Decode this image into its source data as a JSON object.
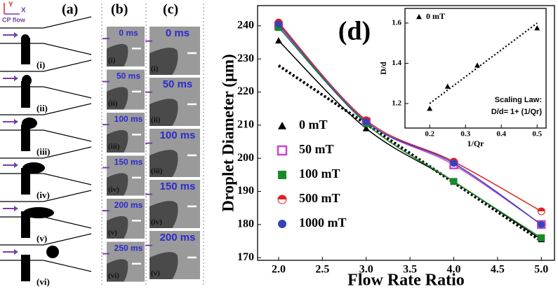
{
  "panel_a": {
    "label": "(a)",
    "axis_y": "Y",
    "axis_x": "X",
    "flow_label": "CP flow",
    "stages": [
      "(i)",
      "(ii)",
      "(iii)",
      "(iv)",
      "(v)",
      "(vi)"
    ]
  },
  "panel_b": {
    "label": "(b)",
    "frames": [
      {
        "time": "0 ms",
        "stage": "(i)"
      },
      {
        "time": "50 ms",
        "stage": "(ii)"
      },
      {
        "time": "100 ms",
        "stage": "(iii)"
      },
      {
        "time": "150 ms",
        "stage": "(iv)"
      },
      {
        "time": "200 ms",
        "stage": "(v)"
      },
      {
        "time": "250 ms",
        "stage": "(vi)"
      }
    ]
  },
  "panel_c": {
    "label": "(c)",
    "frames": [
      {
        "time": "0 ms",
        "stage": "(i)"
      },
      {
        "time": "50 ms",
        "stage": "(ii)"
      },
      {
        "time": "100 ms",
        "stage": "(iii)"
      },
      {
        "time": "150 ms",
        "stage": "(iv)"
      },
      {
        "time": "200 ms",
        "stage": "(v)"
      }
    ]
  },
  "chart_data": [
    {
      "type": "scatter",
      "title": "(d)",
      "x_label": "Flow Rate Ratio",
      "y_label": "Droplet Diameter (μm)",
      "x": [
        2,
        3,
        4,
        5
      ],
      "series": [
        {
          "name": "0 mT",
          "color": "#000000",
          "marker": "triangle",
          "values": [
            235.5,
            209,
            193,
            175.5
          ]
        },
        {
          "name": "50 mT",
          "color": "#cc44cc",
          "marker": "square-half",
          "values": [
            240,
            211,
            198,
            180
          ]
        },
        {
          "name": "100 mT",
          "color": "#1a8a2a",
          "marker": "square",
          "values": [
            239.5,
            210.5,
            193,
            176
          ]
        },
        {
          "name": "500 mT",
          "color": "#dd2222",
          "marker": "circle-half",
          "values": [
            241,
            211.5,
            199,
            184
          ]
        },
        {
          "name": "1000 mT",
          "color": "#3344bb",
          "marker": "circle",
          "values": [
            240.5,
            211,
            198.5,
            180
          ]
        }
      ],
      "fit_lines": true,
      "trend_line": {
        "x": [
          2,
          5
        ],
        "values": [
          228,
          175
        ],
        "color": "#000000"
      },
      "xlim": [
        1.76,
        5.15
      ],
      "ylim": [
        169.2,
        246.1
      ],
      "xticks": [
        {
          "value": 2,
          "label": "2.0"
        },
        2.5,
        {
          "value": 3,
          "label": "3.0"
        },
        3.5,
        {
          "value": 4,
          "label": "4.0"
        },
        4.5,
        {
          "value": 5,
          "label": "5.0"
        }
      ],
      "yticks": [
        170,
        180,
        190,
        200,
        210,
        220,
        230,
        240
      ],
      "legend": "lower left"
    },
    {
      "type": "scatter",
      "x_label": "1/Qr",
      "y_label": "D/d",
      "x": [
        0.2,
        0.25,
        0.333,
        0.5
      ],
      "series": [
        {
          "name": "0 mT",
          "color": "#000000",
          "marker": "triangle",
          "values": [
            1.175,
            1.285,
            1.39,
            1.575
          ]
        }
      ],
      "fit_lines": false,
      "trend_line": {
        "x": [
          0.2,
          0.5
        ],
        "values": [
          1.2,
          1.6
        ],
        "color": "#000000"
      },
      "annotations": [
        "Scaling Law:",
        "D/d= 1+ (1/Qr)"
      ],
      "xlim": [
        0.131,
        0.525
      ],
      "ylim": [
        1.078,
        1.673
      ],
      "xticks": [
        0.2,
        0.3,
        0.4,
        0.5
      ],
      "yticks": [
        1.2,
        1.4,
        1.6
      ],
      "legend": "upper left"
    }
  ]
}
